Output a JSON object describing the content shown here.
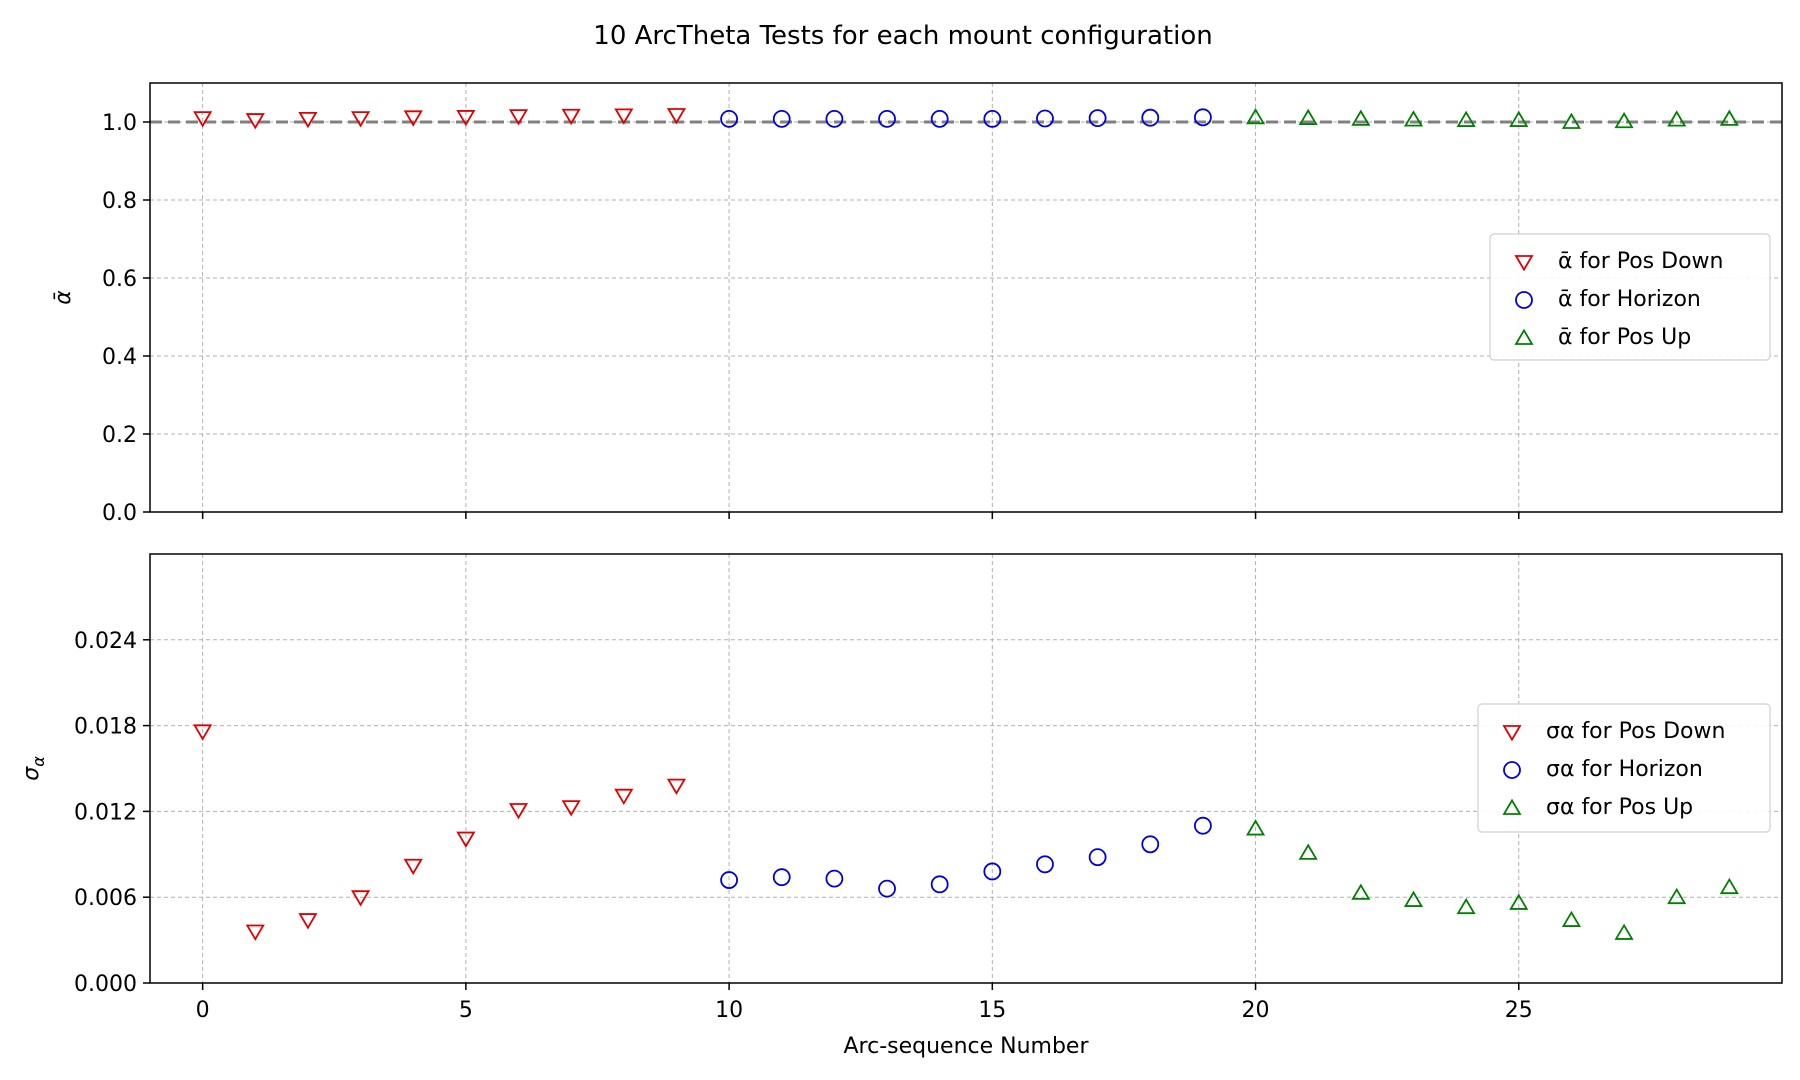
{
  "figure": {
    "title": "10 ArcTheta Tests for each mount configuration",
    "xlabel": "Arc-sequence Number"
  },
  "chart_data": [
    {
      "type": "scatter",
      "id": "top",
      "ylabel": "ᾱ",
      "ylim": [
        0.0,
        1.1
      ],
      "yticks": [
        0.0,
        0.2,
        0.4,
        0.6,
        0.8,
        1.0
      ],
      "ytick_labels": [
        "0.0",
        "0.2",
        "0.4",
        "0.6",
        "0.8",
        "1.0"
      ],
      "xlim": [
        -1,
        30
      ],
      "xticks": [
        0,
        5,
        10,
        15,
        20,
        25
      ],
      "xtick_labels": [
        "",
        "",
        "",
        "",
        "",
        ""
      ],
      "grid": true,
      "reference_line": {
        "y": 1.0,
        "style": "dashed",
        "color": "#808080"
      },
      "legend_placement": "center-right",
      "series": [
        {
          "name": "ᾱ for Pos Down",
          "marker": "triangle-down",
          "color": "#e00000",
          "x": [
            0,
            1,
            2,
            3,
            4,
            5,
            6,
            7,
            8,
            9
          ],
          "y": [
            1.01,
            1.005,
            1.008,
            1.01,
            1.012,
            1.013,
            1.015,
            1.016,
            1.017,
            1.018
          ]
        },
        {
          "name": "ᾱ for Horizon",
          "marker": "circle",
          "color": "#0000e0",
          "x": [
            10,
            11,
            12,
            13,
            14,
            15,
            16,
            17,
            18,
            19
          ],
          "y": [
            1.008,
            1.008,
            1.008,
            1.008,
            1.008,
            1.008,
            1.009,
            1.01,
            1.011,
            1.012
          ]
        },
        {
          "name": "ᾱ for Pos Up",
          "marker": "triangle-up",
          "color": "#008000",
          "x": [
            20,
            21,
            22,
            23,
            24,
            25,
            26,
            27,
            28,
            29
          ],
          "y": [
            1.012,
            1.01,
            1.008,
            1.006,
            1.005,
            1.005,
            1.0,
            1.002,
            1.006,
            1.008
          ]
        }
      ]
    },
    {
      "type": "scatter",
      "id": "bottom",
      "ylabel": "σα",
      "ylim": [
        0.0,
        0.03
      ],
      "yticks": [
        0.0,
        0.006,
        0.012,
        0.018,
        0.024
      ],
      "ytick_labels": [
        "0.000",
        "0.006",
        "0.012",
        "0.018",
        "0.024"
      ],
      "xlim": [
        -1,
        30
      ],
      "xticks": [
        0,
        5,
        10,
        15,
        20,
        25
      ],
      "xtick_labels": [
        "0",
        "5",
        "10",
        "15",
        "20",
        "25"
      ],
      "grid": true,
      "legend_placement": "center-right",
      "series": [
        {
          "name": "σα for Pos Down",
          "marker": "triangle-down",
          "color": "#e00000",
          "x": [
            0,
            1,
            2,
            3,
            4,
            5,
            6,
            7,
            8,
            9
          ],
          "y": [
            0.0176,
            0.0036,
            0.0044,
            0.006,
            0.0082,
            0.0101,
            0.0121,
            0.0123,
            0.0131,
            0.0138
          ]
        },
        {
          "name": "σα for Horizon",
          "marker": "circle",
          "color": "#0000e0",
          "x": [
            10,
            11,
            12,
            13,
            14,
            15,
            16,
            17,
            18,
            19
          ],
          "y": [
            0.0072,
            0.0074,
            0.0073,
            0.0066,
            0.0069,
            0.0078,
            0.0083,
            0.0088,
            0.0097,
            0.011
          ]
        },
        {
          "name": "σα for Pos Up",
          "marker": "triangle-up",
          "color": "#008000",
          "x": [
            20,
            21,
            22,
            23,
            24,
            25,
            26,
            27,
            28,
            29
          ],
          "y": [
            0.0108,
            0.0091,
            0.0063,
            0.0058,
            0.0053,
            0.0056,
            0.0044,
            0.0035,
            0.006,
            0.0067
          ]
        }
      ]
    }
  ]
}
